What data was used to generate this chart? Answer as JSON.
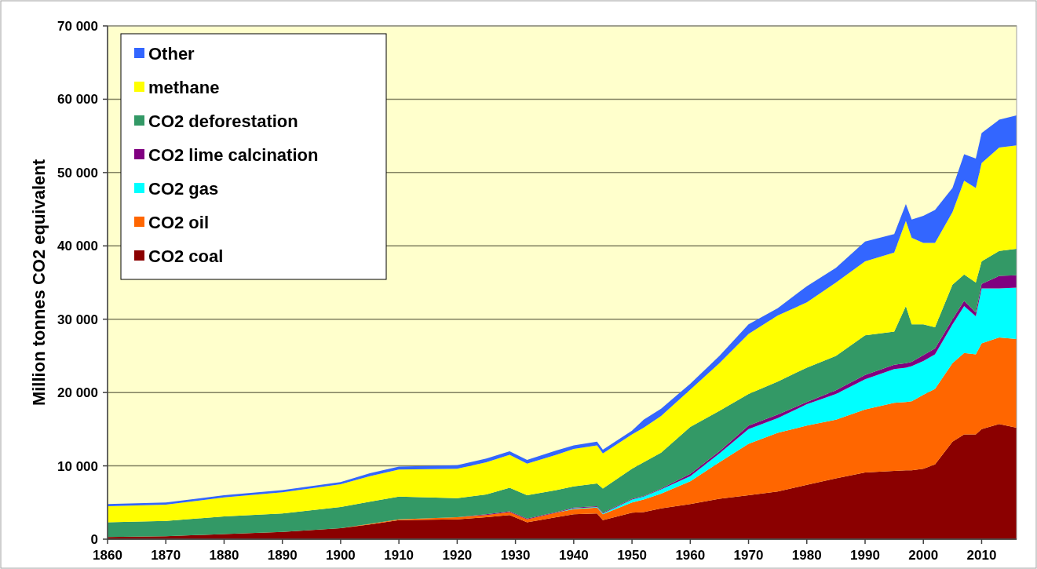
{
  "chart_data": {
    "type": "area",
    "stacked": true,
    "ylabel": "Million tonnes CO2 equivalent",
    "x": [
      1860,
      1870,
      1880,
      1890,
      1900,
      1905,
      1910,
      1920,
      1925,
      1929,
      1932,
      1937,
      1940,
      1944,
      1945,
      1950,
      1952,
      1955,
      1960,
      1965,
      1970,
      1975,
      1980,
      1985,
      1990,
      1995,
      1997,
      1998,
      2000,
      2002,
      2005,
      2007,
      2009,
      2010,
      2013,
      2016
    ],
    "xlim": [
      1860,
      2016
    ],
    "xticks": [
      1860,
      1870,
      1880,
      1890,
      1900,
      1910,
      1920,
      1930,
      1940,
      1950,
      1960,
      1970,
      1980,
      1990,
      2000,
      2010
    ],
    "ylim": [
      0,
      70000
    ],
    "yticks": [
      0,
      {
        "value": 10000,
        "label": "10 000"
      },
      {
        "value": 20000,
        "label": "20 000"
      },
      {
        "value": 30000,
        "label": "30 000"
      },
      {
        "value": 40000,
        "label": "40 000"
      },
      {
        "value": 50000,
        "label": "50 000"
      },
      {
        "value": 60000,
        "label": "60 000"
      },
      {
        "value": 70000,
        "label": "70 000"
      }
    ],
    "grid": "y",
    "legend": "top left",
    "series": [
      {
        "name": "CO2 coal",
        "color": "#8b0000",
        "values": [
          300,
          400,
          700,
          1000,
          1500,
          2000,
          2600,
          2700,
          3000,
          3300,
          2300,
          3000,
          3400,
          3500,
          2600,
          3600,
          3700,
          4200,
          4800,
          5500,
          6000,
          6500,
          7400,
          8300,
          9100,
          9300,
          9400,
          9400,
          9600,
          10200,
          13300,
          14300,
          14300,
          15000,
          15700,
          15200
        ]
      },
      {
        "name": "CO2 oil",
        "color": "#ff6600",
        "values": [
          0,
          0,
          0,
          0,
          0,
          100,
          100,
          300,
          300,
          400,
          400,
          600,
          700,
          800,
          800,
          1400,
          1700,
          2000,
          3100,
          5000,
          7000,
          8000,
          8100,
          8000,
          8600,
          9300,
          9300,
          9400,
          10100,
          10300,
          10700,
          11100,
          10900,
          11700,
          11800,
          12100
        ]
      },
      {
        "name": "CO2 gas",
        "color": "#00ffff",
        "values": [
          0,
          0,
          0,
          0,
          0,
          0,
          0,
          0,
          0,
          0,
          0,
          0,
          100,
          100,
          100,
          400,
          400,
          600,
          700,
          1200,
          2000,
          2000,
          2900,
          3500,
          4100,
          4600,
          4700,
          4800,
          4600,
          4700,
          5300,
          6400,
          5200,
          7500,
          6700,
          7000
        ]
      },
      {
        "name": "CO2 lime calcination",
        "color": "#800080",
        "values": [
          0,
          0,
          0,
          0,
          0,
          0,
          0,
          0,
          100,
          100,
          100,
          100,
          100,
          100,
          100,
          100,
          100,
          100,
          300,
          300,
          500,
          500,
          300,
          500,
          600,
          600,
          600,
          600,
          800,
          800,
          700,
          700,
          500,
          600,
          1700,
          1700
        ]
      },
      {
        "name": "CO2 deforestation",
        "color": "#339966",
        "values": [
          2000,
          2100,
          2400,
          2500,
          2900,
          3000,
          3100,
          2600,
          2700,
          3200,
          3200,
          3000,
          2900,
          3100,
          3300,
          4100,
          4600,
          4900,
          6400,
          5500,
          4300,
          4500,
          4700,
          4700,
          5400,
          4500,
          7800,
          5100,
          4200,
          2900,
          4700,
          3600,
          4100,
          3100,
          3400,
          3600
        ]
      },
      {
        "name": "methane",
        "color": "#ffff00",
        "values": [
          2200,
          2200,
          2600,
          2900,
          3100,
          3500,
          3700,
          4000,
          4400,
          4500,
          4300,
          4800,
          5100,
          5200,
          4800,
          4700,
          4700,
          5000,
          5100,
          6500,
          8200,
          9000,
          8900,
          10000,
          10100,
          10800,
          11600,
          11800,
          11100,
          11500,
          9900,
          12800,
          12900,
          13400,
          14100,
          14100
        ]
      },
      {
        "name": "Other",
        "color": "#3366ff",
        "values": [
          300,
          300,
          300,
          300,
          300,
          400,
          400,
          500,
          500,
          500,
          500,
          600,
          500,
          500,
          500,
          500,
          1100,
          1000,
          800,
          1000,
          1300,
          1000,
          2200,
          2000,
          2700,
          2500,
          2300,
          2500,
          3700,
          4500,
          3300,
          3600,
          4000,
          4100,
          3800,
          4100
        ]
      }
    ]
  }
}
